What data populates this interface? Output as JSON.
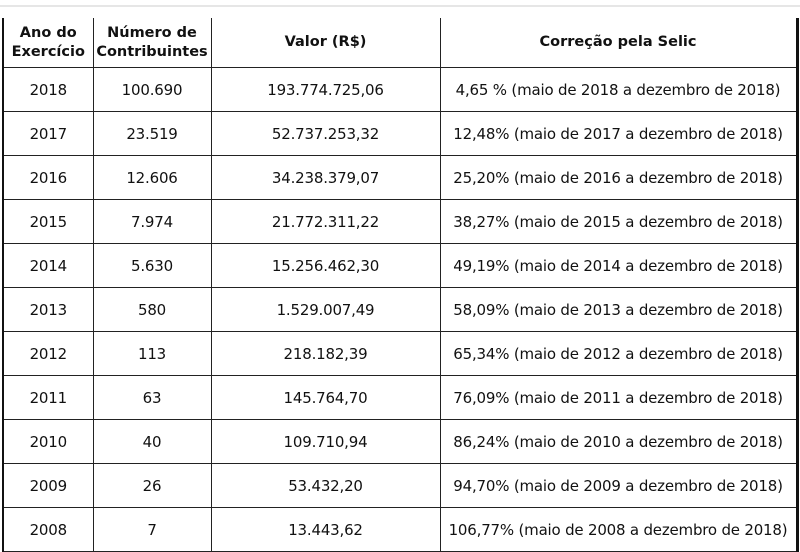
{
  "headers": [
    "Ano do Exercício",
    "Número de Contribuintes",
    "Valor (R$)",
    "Correção pela Selic"
  ],
  "header_lines": {
    "ano": [
      "Ano do",
      "Exercício"
    ],
    "numero": [
      "Número de",
      "Contribuintes"
    ]
  },
  "rows": [
    [
      "2018",
      "100.690",
      "193.774.725,06",
      "4,65 % (maio de 2018 a dezembro de 2018)"
    ],
    [
      "2017",
      "23.519",
      "52.737.253,32",
      "12,48% (maio de 2017 a dezembro de 2018)"
    ],
    [
      "2016",
      "12.606",
      "34.238.379,07",
      "25,20% (maio de 2016 a dezembro de 2018)"
    ],
    [
      "2015",
      "7.974",
      "21.772.311,22",
      "38,27% (maio de 2015 a dezembro de 2018)"
    ],
    [
      "2014",
      "5.630",
      "15.256.462,30",
      "49,19% (maio de 2014 a dezembro de 2018)"
    ],
    [
      "2013",
      "580",
      "1.529.007,49",
      "58,09% (maio de 2013 a dezembro de 2018)"
    ],
    [
      "2012",
      "113",
      "218.182,39",
      "65,34% (maio de 2012 a  dezembro de 2018)"
    ],
    [
      "2011",
      "63",
      "145.764,70",
      "76,09% (maio de 2011 a dezembro de 2018)"
    ],
    [
      "2010",
      "40",
      "109.710,94",
      "86,24% (maio de 2010 a  dezembro de 2018)"
    ],
    [
      "2009",
      "26",
      "53.432,20",
      "94,70% (maio de 2009 a dezembro de 2018)"
    ],
    [
      "2008",
      "7",
      "13.443,62",
      "106,77% (maio de 2008 a dezembro de 2018)"
    ]
  ]
}
